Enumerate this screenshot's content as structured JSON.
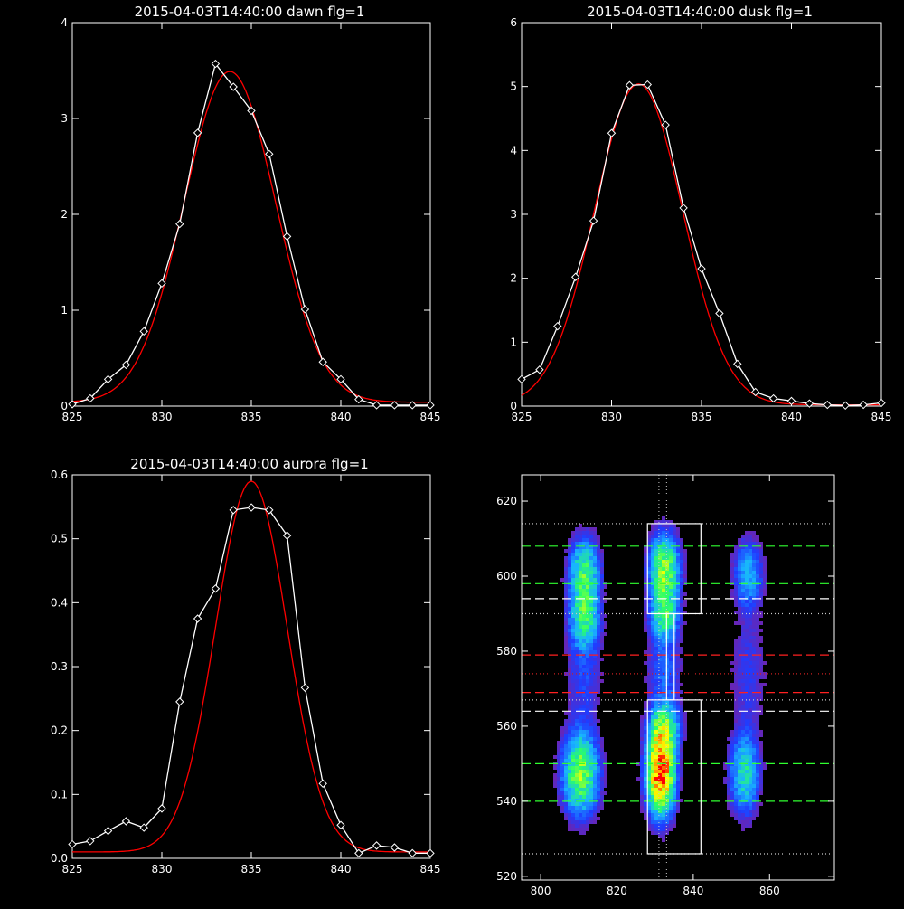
{
  "chart_data": [
    {
      "type": "line",
      "title": "2015-04-03T14:40:00 dawn flg=1",
      "xlim": [
        825,
        845
      ],
      "ylim": [
        0,
        4
      ],
      "xticks": [
        825,
        830,
        835,
        840,
        845
      ],
      "yticks": [
        0,
        1,
        2,
        3,
        4
      ],
      "series": [
        {
          "color": "#ffffff",
          "marker": "diamond",
          "x": [
            825,
            826,
            827,
            828,
            829,
            830,
            831,
            832,
            833,
            834,
            835,
            836,
            837,
            838,
            839,
            840,
            841,
            842,
            843,
            844,
            845
          ],
          "y": [
            0.02,
            0.08,
            0.28,
            0.43,
            0.78,
            1.28,
            1.9,
            2.85,
            3.57,
            3.33,
            3.08,
            2.63,
            1.77,
            1.01,
            0.46,
            0.28,
            0.07,
            0.01,
            0.01,
            0.01,
            0.01
          ]
        },
        {
          "color": "#ff0000",
          "fit": "gaussian",
          "amp": 3.45,
          "center": 833.8,
          "sigma": 2.55,
          "offset": 0.04
        }
      ]
    },
    {
      "type": "line",
      "title": "2015-04-03T14:40:00 dusk flg=1",
      "xlim": [
        825,
        845
      ],
      "ylim": [
        0,
        6
      ],
      "xticks": [
        825,
        830,
        835,
        840,
        845
      ],
      "yticks": [
        0,
        1,
        2,
        3,
        4,
        5,
        6
      ],
      "series": [
        {
          "color": "#ffffff",
          "marker": "diamond",
          "x": [
            825,
            826,
            827,
            828,
            829,
            830,
            831,
            832,
            833,
            834,
            835,
            836,
            837,
            838,
            839,
            840,
            841,
            842,
            843,
            844,
            845
          ],
          "y": [
            0.42,
            0.57,
            1.25,
            2.02,
            2.9,
            4.27,
            5.02,
            5.03,
            4.4,
            3.1,
            2.15,
            1.45,
            0.66,
            0.22,
            0.12,
            0.08,
            0.04,
            0.02,
            0.01,
            0.02,
            0.05
          ]
        },
        {
          "color": "#ff0000",
          "fit": "gaussian",
          "amp": 5.02,
          "center": 831.5,
          "sigma": 2.45,
          "offset": 0.02
        }
      ]
    },
    {
      "type": "line",
      "title": "2015-04-03T14:40:00 aurora flg=1",
      "xlim": [
        825,
        845
      ],
      "ylim": [
        0,
        0.6
      ],
      "xticks": [
        825,
        830,
        835,
        840,
        845
      ],
      "yticks": [
        0.0,
        0.1,
        0.2,
        0.3,
        0.4,
        0.5,
        0.6
      ],
      "series": [
        {
          "color": "#ffffff",
          "marker": "diamond",
          "x": [
            825,
            826,
            827,
            828,
            829,
            830,
            831,
            832,
            833,
            834,
            835,
            836,
            837,
            838,
            839,
            840,
            841,
            842,
            843,
            844,
            845
          ],
          "y": [
            0.022,
            0.027,
            0.043,
            0.058,
            0.048,
            0.078,
            0.245,
            0.375,
            0.422,
            0.545,
            0.549,
            0.545,
            0.505,
            0.267,
            0.117,
            0.052,
            0.008,
            0.02,
            0.017,
            0.008,
            0.008
          ]
        },
        {
          "color": "#ff0000",
          "fit": "gaussian",
          "amp": 0.58,
          "center": 835.0,
          "sigma": 2.0,
          "offset": 0.01
        }
      ]
    },
    {
      "type": "heatmap",
      "title": "",
      "xlim": [
        795,
        877
      ],
      "ylim": [
        519,
        627
      ],
      "xticks": [
        800,
        820,
        840,
        860
      ],
      "yticks": [
        520,
        540,
        560,
        580,
        600,
        620
      ],
      "colormap": [
        "#000000",
        "#7a1fa2",
        "#1f3cff",
        "#18b4ff",
        "#29ff6a",
        "#ffff00",
        "#ff0000"
      ],
      "blobs": [
        {
          "x": 811,
          "y": 601,
          "peak": 0.45,
          "sx": 2.5,
          "sy": 6
        },
        {
          "x": 811,
          "y": 589,
          "peak": 0.35,
          "sx": 2.5,
          "sy": 5
        },
        {
          "x": 832,
          "y": 602,
          "peak": 0.58,
          "sx": 2.5,
          "sy": 6
        },
        {
          "x": 832,
          "y": 590,
          "peak": 0.35,
          "sx": 2.3,
          "sy": 4
        },
        {
          "x": 854,
          "y": 601,
          "peak": 0.25,
          "sx": 2.5,
          "sy": 6
        },
        {
          "x": 810,
          "y": 548,
          "peak": 0.55,
          "sx": 3,
          "sy": 7
        },
        {
          "x": 831,
          "y": 548,
          "peak": 1.0,
          "sx": 2.3,
          "sy": 7
        },
        {
          "x": 832,
          "y": 560,
          "peak": 0.4,
          "sx": 2.5,
          "sy": 4
        },
        {
          "x": 853,
          "y": 548,
          "peak": 0.35,
          "sx": 2.5,
          "sy": 7
        },
        {
          "x": 811,
          "y": 575,
          "peak": 0.12,
          "sx": 3,
          "sy": 10
        },
        {
          "x": 832,
          "y": 575,
          "peak": 0.15,
          "sx": 3,
          "sy": 10
        },
        {
          "x": 854,
          "y": 575,
          "peak": 0.1,
          "sx": 3,
          "sy": 10
        }
      ],
      "lines": [
        {
          "orient": "h",
          "value": 608,
          "color": "#30ff30",
          "style": "dashed"
        },
        {
          "orient": "h",
          "value": 598,
          "color": "#30ff30",
          "style": "dashed"
        },
        {
          "orient": "h",
          "value": 594,
          "color": "#ffffff",
          "style": "dashed"
        },
        {
          "orient": "h",
          "value": 579,
          "color": "#ff2020",
          "style": "dashed"
        },
        {
          "orient": "h",
          "value": 569,
          "color": "#ff2020",
          "style": "dashed"
        },
        {
          "orient": "h",
          "value": 564,
          "color": "#ffffff",
          "style": "dashed"
        },
        {
          "orient": "h",
          "value": 550,
          "color": "#30ff30",
          "style": "dashed"
        },
        {
          "orient": "h",
          "value": 540,
          "color": "#30ff30",
          "style": "dashed"
        },
        {
          "orient": "h",
          "value": 614,
          "color": "#cccccc",
          "style": "dotted"
        },
        {
          "orient": "h",
          "value": 590,
          "color": "#cccccc",
          "style": "dotted"
        },
        {
          "orient": "h",
          "value": 574,
          "color": "#cc2020",
          "style": "dotted"
        },
        {
          "orient": "h",
          "value": 567,
          "color": "#cccccc",
          "style": "dotted"
        },
        {
          "orient": "h",
          "value": 526,
          "color": "#cccccc",
          "style": "dotted"
        },
        {
          "orient": "v",
          "value": 831,
          "color": "#cccccc",
          "style": "dotted"
        },
        {
          "orient": "v",
          "value": 833,
          "color": "#cccccc",
          "style": "dotted"
        }
      ],
      "boxes": [
        {
          "x0": 828,
          "x1": 842,
          "y0": 590,
          "y1": 614
        },
        {
          "x0": 828,
          "x1": 842,
          "y0": 526,
          "y1": 567
        },
        {
          "x0": 833,
          "x1": 835,
          "y0": 567,
          "y1": 590
        }
      ]
    }
  ]
}
